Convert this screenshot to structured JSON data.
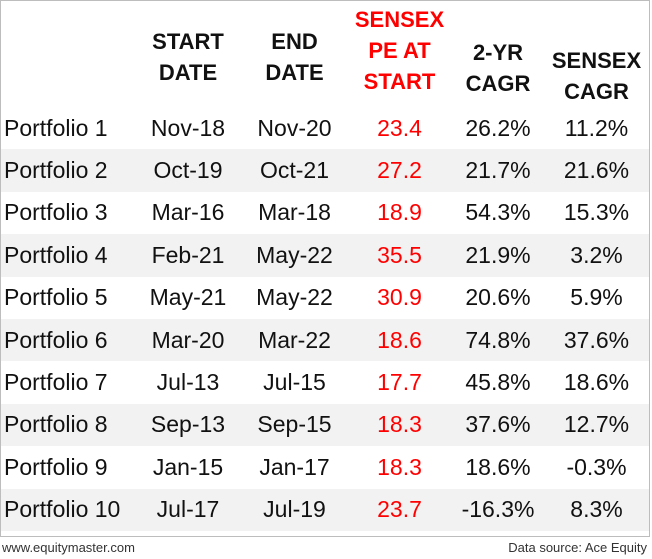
{
  "headers": {
    "start": [
      "START",
      "DATE"
    ],
    "end": [
      "END",
      "DATE"
    ],
    "pe": [
      "SENSEX",
      "PE AT",
      "START"
    ],
    "cagr": [
      "2-YR",
      "CAGR"
    ],
    "sensex_cagr": [
      "SENSEX",
      "CAGR"
    ]
  },
  "rows": [
    {
      "name": "Portfolio 1",
      "start": "Nov-18",
      "end": "Nov-20",
      "pe": "23.4",
      "cagr": "26.2%",
      "sensex_cagr": "11.2%"
    },
    {
      "name": "Portfolio 2",
      "start": "Oct-19",
      "end": "Oct-21",
      "pe": "27.2",
      "cagr": "21.7%",
      "sensex_cagr": "21.6%"
    },
    {
      "name": "Portfolio 3",
      "start": "Mar-16",
      "end": "Mar-18",
      "pe": "18.9",
      "cagr": "54.3%",
      "sensex_cagr": "15.3%"
    },
    {
      "name": "Portfolio 4",
      "start": "Feb-21",
      "end": "May-22",
      "pe": "35.5",
      "cagr": "21.9%",
      "sensex_cagr": "3.2%"
    },
    {
      "name": "Portfolio 5",
      "start": "May-21",
      "end": "May-22",
      "pe": "30.9",
      "cagr": "20.6%",
      "sensex_cagr": "5.9%"
    },
    {
      "name": "Portfolio 6",
      "start": "Mar-20",
      "end": "Mar-22",
      "pe": "18.6",
      "cagr": "74.8%",
      "sensex_cagr": "37.6%"
    },
    {
      "name": "Portfolio 7",
      "start": "Jul-13",
      "end": "Jul-15",
      "pe": "17.7",
      "cagr": "45.8%",
      "sensex_cagr": "18.6%"
    },
    {
      "name": "Portfolio 8",
      "start": "Sep-13",
      "end": "Sep-15",
      "pe": "18.3",
      "cagr": "37.6%",
      "sensex_cagr": "12.7%"
    },
    {
      "name": "Portfolio 9",
      "start": "Jan-15",
      "end": "Jan-17",
      "pe": "18.3",
      "cagr": "18.6%",
      "sensex_cagr": "-0.3%"
    },
    {
      "name": "Portfolio 10",
      "start": "Jul-17",
      "end": "Jul-19",
      "pe": "23.7",
      "cagr": "-16.3%",
      "sensex_cagr": "8.3%"
    }
  ],
  "footer": {
    "website": "www.equitymaster.com",
    "source": "Data source: Ace Equity"
  },
  "colors": {
    "pe_highlight": "#ff0000",
    "row_stripe": "#f2f2f2"
  }
}
